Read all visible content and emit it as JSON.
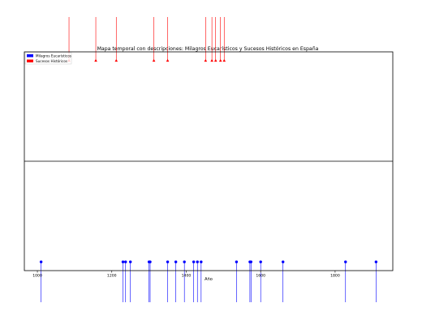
{
  "colors": {
    "eucharistic": "#0000ff",
    "historical": "#ff0000",
    "axes": "#000000",
    "background": "#ffffff"
  },
  "chart_data": {
    "type": "scatter",
    "title": "Mapa temporal con descripciones: Milagros Eucarísticos y Sucesos Históricos en España",
    "xlabel": "Año",
    "ylabel": "",
    "xlim": [
      965,
      1955
    ],
    "ylim": [
      -1,
      1
    ],
    "xticks": [
      1000,
      1200,
      1400,
      1600,
      1800
    ],
    "xtick_labels": [
      "1000",
      "1200",
      "1400",
      "1600",
      "1800"
    ],
    "grid": false,
    "legend": {
      "location": "upper left",
      "entries": [
        "Milagros Eucarísticos",
        "Sucesos Históricos"
      ]
    },
    "series": [
      {
        "name": "Milagros Eucarísticos",
        "color": "#0000ff",
        "marker": "o",
        "y": -0.92,
        "x": [
          1010,
          1230,
          1237,
          1250,
          1300,
          1303,
          1350,
          1372,
          1395,
          1420,
          1430,
          1440,
          1535,
          1571,
          1574,
          1600,
          1660,
          1828,
          1910
        ]
      },
      {
        "name": "Sucesos Históricos",
        "color": "#ff0000",
        "marker": "^",
        "y": 0.92,
        "x": [
          1085,
          1157,
          1212,
          1313,
          1350,
          1452,
          1469,
          1479,
          1492,
          1502
        ]
      }
    ]
  }
}
